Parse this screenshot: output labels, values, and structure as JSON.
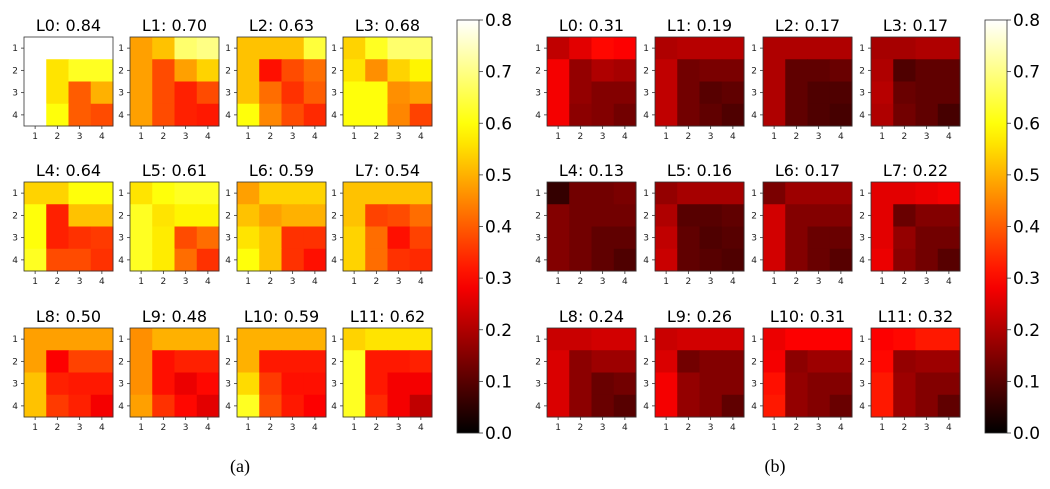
{
  "chart_data": [
    {
      "type": "heatmap",
      "panel_label": "(a)",
      "colormap": "hot",
      "vrange": [
        0.0,
        0.8
      ],
      "colorbar_ticks": [
        "0.0",
        "0.1",
        "0.2",
        "0.3",
        "0.4",
        "0.5",
        "0.6",
        "0.7",
        "0.8"
      ],
      "x_ticks": [
        "1",
        "2",
        "3",
        "4"
      ],
      "y_ticks": [
        "1",
        "2",
        "3",
        "4"
      ],
      "subplots": [
        {
          "title": "L0: 0.84",
          "values": [
            [
              0.8,
              0.8,
              0.8,
              0.8
            ],
            [
              0.8,
              0.56,
              0.62,
              0.62
            ],
            [
              0.8,
              0.56,
              0.4,
              0.5
            ],
            [
              0.8,
              0.6,
              0.4,
              0.38
            ]
          ]
        },
        {
          "title": "L1: 0.70",
          "values": [
            [
              0.48,
              0.52,
              0.68,
              0.7
            ],
            [
              0.48,
              0.38,
              0.48,
              0.54
            ],
            [
              0.48,
              0.38,
              0.33,
              0.38
            ],
            [
              0.48,
              0.38,
              0.33,
              0.32
            ]
          ]
        },
        {
          "title": "L2: 0.63",
          "values": [
            [
              0.52,
              0.52,
              0.52,
              0.64
            ],
            [
              0.52,
              0.31,
              0.38,
              0.42
            ],
            [
              0.52,
              0.42,
              0.35,
              0.4
            ],
            [
              0.6,
              0.45,
              0.38,
              0.34
            ]
          ]
        },
        {
          "title": "L3: 0.68",
          "values": [
            [
              0.54,
              0.62,
              0.68,
              0.68
            ],
            [
              0.56,
              0.46,
              0.54,
              0.58
            ],
            [
              0.6,
              0.6,
              0.46,
              0.48
            ],
            [
              0.6,
              0.6,
              0.45,
              0.37
            ]
          ]
        },
        {
          "title": "L4: 0.64",
          "values": [
            [
              0.54,
              0.54,
              0.6,
              0.6
            ],
            [
              0.6,
              0.33,
              0.52,
              0.52
            ],
            [
              0.6,
              0.33,
              0.35,
              0.36
            ],
            [
              0.62,
              0.38,
              0.38,
              0.35
            ]
          ]
        },
        {
          "title": "L5: 0.61",
          "values": [
            [
              0.56,
              0.6,
              0.62,
              0.62
            ],
            [
              0.62,
              0.56,
              0.58,
              0.58
            ],
            [
              0.62,
              0.57,
              0.38,
              0.42
            ],
            [
              0.62,
              0.57,
              0.42,
              0.35
            ]
          ]
        },
        {
          "title": "L6: 0.59",
          "values": [
            [
              0.48,
              0.54,
              0.54,
              0.54
            ],
            [
              0.52,
              0.48,
              0.5,
              0.5
            ],
            [
              0.56,
              0.52,
              0.35,
              0.35
            ],
            [
              0.6,
              0.52,
              0.35,
              0.31
            ]
          ]
        },
        {
          "title": "L7: 0.54",
          "values": [
            [
              0.52,
              0.52,
              0.52,
              0.52
            ],
            [
              0.52,
              0.37,
              0.38,
              0.42
            ],
            [
              0.54,
              0.42,
              0.31,
              0.37
            ],
            [
              0.54,
              0.42,
              0.35,
              0.34
            ]
          ]
        },
        {
          "title": "L8: 0.50",
          "values": [
            [
              0.48,
              0.48,
              0.48,
              0.48
            ],
            [
              0.48,
              0.29,
              0.37,
              0.37
            ],
            [
              0.52,
              0.33,
              0.32,
              0.32
            ],
            [
              0.52,
              0.36,
              0.33,
              0.28
            ]
          ]
        },
        {
          "title": "L9: 0.48",
          "values": [
            [
              0.46,
              0.5,
              0.5,
              0.5
            ],
            [
              0.46,
              0.31,
              0.33,
              0.33
            ],
            [
              0.46,
              0.31,
              0.27,
              0.3
            ],
            [
              0.48,
              0.35,
              0.3,
              0.26
            ]
          ]
        },
        {
          "title": "L10: 0.59",
          "values": [
            [
              0.5,
              0.5,
              0.5,
              0.5
            ],
            [
              0.5,
              0.32,
              0.32,
              0.32
            ],
            [
              0.55,
              0.36,
              0.31,
              0.31
            ],
            [
              0.62,
              0.38,
              0.32,
              0.29
            ]
          ]
        },
        {
          "title": "L11: 0.62",
          "values": [
            [
              0.54,
              0.56,
              0.56,
              0.56
            ],
            [
              0.62,
              0.32,
              0.32,
              0.33
            ],
            [
              0.62,
              0.32,
              0.28,
              0.28
            ],
            [
              0.62,
              0.34,
              0.28,
              0.22
            ]
          ]
        }
      ]
    },
    {
      "type": "heatmap",
      "panel_label": "(b)",
      "colormap": "hot",
      "vrange": [
        0.0,
        0.8
      ],
      "colorbar_ticks": [
        "0.0",
        "0.1",
        "0.2",
        "0.3",
        "0.4",
        "0.5",
        "0.6",
        "0.7",
        "0.8"
      ],
      "x_ticks": [
        "1",
        "2",
        "3",
        "4"
      ],
      "y_ticks": [
        "1",
        "2",
        "3",
        "4"
      ],
      "subplots": [
        {
          "title": "L0: 0.31",
          "values": [
            [
              0.22,
              0.26,
              0.3,
              0.29
            ],
            [
              0.28,
              0.17,
              0.2,
              0.19
            ],
            [
              0.28,
              0.17,
              0.15,
              0.15
            ],
            [
              0.28,
              0.16,
              0.15,
              0.13
            ]
          ]
        },
        {
          "title": "L1: 0.19",
          "values": [
            [
              0.2,
              0.21,
              0.21,
              0.21
            ],
            [
              0.22,
              0.13,
              0.14,
              0.14
            ],
            [
              0.22,
              0.13,
              0.1,
              0.11
            ],
            [
              0.22,
              0.13,
              0.11,
              0.09
            ]
          ]
        },
        {
          "title": "L2: 0.17",
          "values": [
            [
              0.2,
              0.2,
              0.2,
              0.2
            ],
            [
              0.2,
              0.11,
              0.11,
              0.12
            ],
            [
              0.2,
              0.11,
              0.09,
              0.09
            ],
            [
              0.2,
              0.11,
              0.09,
              0.08
            ]
          ]
        },
        {
          "title": "L3: 0.17",
          "values": [
            [
              0.19,
              0.19,
              0.2,
              0.2
            ],
            [
              0.2,
              0.09,
              0.11,
              0.11
            ],
            [
              0.21,
              0.12,
              0.11,
              0.11
            ],
            [
              0.2,
              0.13,
              0.11,
              0.08
            ]
          ]
        },
        {
          "title": "L4: 0.13",
          "values": [
            [
              0.06,
              0.13,
              0.13,
              0.14
            ],
            [
              0.15,
              0.13,
              0.13,
              0.13
            ],
            [
              0.15,
              0.13,
              0.11,
              0.11
            ],
            [
              0.15,
              0.13,
              0.11,
              0.09
            ]
          ]
        },
        {
          "title": "L5: 0.16",
          "values": [
            [
              0.17,
              0.19,
              0.19,
              0.19
            ],
            [
              0.2,
              0.1,
              0.1,
              0.11
            ],
            [
              0.22,
              0.11,
              0.09,
              0.1
            ],
            [
              0.23,
              0.11,
              0.1,
              0.09
            ]
          ]
        },
        {
          "title": "L6: 0.17",
          "values": [
            [
              0.14,
              0.18,
              0.18,
              0.18
            ],
            [
              0.24,
              0.15,
              0.15,
              0.15
            ],
            [
              0.24,
              0.15,
              0.12,
              0.12
            ],
            [
              0.24,
              0.15,
              0.12,
              0.1
            ]
          ]
        },
        {
          "title": "L7: 0.22",
          "values": [
            [
              0.26,
              0.26,
              0.27,
              0.28
            ],
            [
              0.26,
              0.12,
              0.15,
              0.15
            ],
            [
              0.26,
              0.17,
              0.13,
              0.13
            ],
            [
              0.27,
              0.16,
              0.13,
              0.1
            ]
          ]
        },
        {
          "title": "L8: 0.24",
          "values": [
            [
              0.23,
              0.23,
              0.24,
              0.24
            ],
            [
              0.25,
              0.16,
              0.18,
              0.18
            ],
            [
              0.25,
              0.16,
              0.12,
              0.13
            ],
            [
              0.25,
              0.16,
              0.12,
              0.1
            ]
          ]
        },
        {
          "title": "L9: 0.26",
          "values": [
            [
              0.23,
              0.24,
              0.24,
              0.24
            ],
            [
              0.25,
              0.13,
              0.15,
              0.15
            ],
            [
              0.28,
              0.17,
              0.15,
              0.15
            ],
            [
              0.28,
              0.17,
              0.15,
              0.11
            ]
          ]
        },
        {
          "title": "L10: 0.31",
          "values": [
            [
              0.27,
              0.29,
              0.29,
              0.29
            ],
            [
              0.28,
              0.16,
              0.18,
              0.18
            ],
            [
              0.31,
              0.17,
              0.15,
              0.15
            ],
            [
              0.32,
              0.17,
              0.15,
              0.12
            ]
          ]
        },
        {
          "title": "L11: 0.32",
          "values": [
            [
              0.29,
              0.3,
              0.32,
              0.32
            ],
            [
              0.3,
              0.17,
              0.18,
              0.18
            ],
            [
              0.32,
              0.18,
              0.15,
              0.15
            ],
            [
              0.32,
              0.18,
              0.15,
              0.11
            ]
          ]
        }
      ]
    }
  ]
}
